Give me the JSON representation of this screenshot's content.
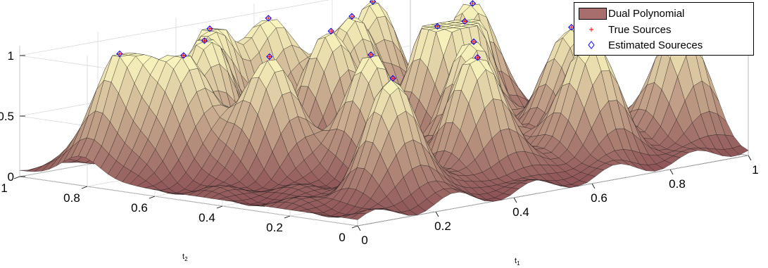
{
  "chart_data": {
    "type": "surface3d",
    "x_axis": {
      "label": "t",
      "subscript": "1",
      "range": [
        0,
        1
      ],
      "ticks": [
        "0",
        "0.2",
        "0.4",
        "0.6",
        "0.8",
        "1"
      ]
    },
    "y_axis": {
      "label": "t",
      "subscript": "2",
      "range": [
        0,
        1
      ],
      "ticks": [
        "0",
        "0.2",
        "0.4",
        "0.6",
        "0.8",
        "1"
      ]
    },
    "z_axis": {
      "range": [
        0,
        1
      ],
      "ticks": [
        "0",
        "0.5",
        "1"
      ]
    },
    "grid": true,
    "legend_position": "top-right",
    "series": [
      {
        "name": "Dual Polynomial",
        "kind": "surface",
        "color": "#a86e6e"
      },
      {
        "name": "True Sources",
        "kind": "marker",
        "marker": "+",
        "color": "#ff0000"
      },
      {
        "name": "Estimated Soureces",
        "kind": "marker",
        "marker": "diamond",
        "color": "#0000ff"
      }
    ],
    "peaks": [
      {
        "t1": 0.1,
        "t2": 0.82,
        "value": 1.0
      },
      {
        "t1": 0.16,
        "t2": 0.7,
        "value": 1.0
      },
      {
        "t1": 0.25,
        "t2": 0.55,
        "value": 1.0
      },
      {
        "t1": 0.3,
        "t2": 0.8,
        "value": 1.0
      },
      {
        "t1": 0.38,
        "t2": 0.4,
        "value": 1.0
      },
      {
        "t1": 0.4,
        "t2": 0.9,
        "value": 1.0
      },
      {
        "t1": 0.48,
        "t2": 0.2,
        "value": 1.0
      },
      {
        "t1": 0.52,
        "t2": 0.68,
        "value": 1.0
      },
      {
        "t1": 0.55,
        "t2": 0.9,
        "value": 1.0
      },
      {
        "t1": 0.6,
        "t2": 0.35,
        "value": 1.0
      },
      {
        "t1": 0.66,
        "t2": 0.78,
        "value": 1.0
      },
      {
        "t1": 0.72,
        "t2": 0.15,
        "value": 1.0
      },
      {
        "t1": 0.75,
        "t2": 0.55,
        "value": 1.0
      },
      {
        "t1": 0.8,
        "t2": 0.88,
        "value": 1.0
      },
      {
        "t1": 0.85,
        "t2": 0.35,
        "value": 1.0
      },
      {
        "t1": 0.9,
        "t2": 0.7,
        "value": 1.0
      },
      {
        "t1": 0.95,
        "t2": 0.15,
        "value": 1.0
      },
      {
        "t1": 0.22,
        "t2": 0.15,
        "value": 1.0
      },
      {
        "t1": 0.68,
        "t2": 0.55,
        "value": 1.0
      }
    ]
  }
}
